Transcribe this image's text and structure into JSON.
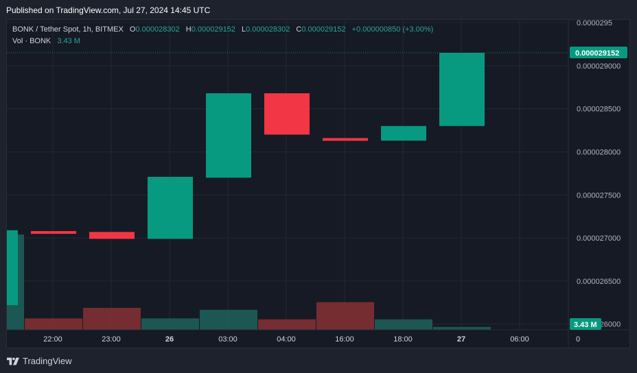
{
  "header": {
    "published": "Published on TradingView.com, Jul 27, 2024 14:45 UTC"
  },
  "legend": {
    "symbol": "BONK / Tether Spot, 1h, BITMEX",
    "o_label": "O",
    "o_value": "0.000028302",
    "h_label": "H",
    "h_value": "0.000029152",
    "l_label": "L",
    "l_value": "0.000028302",
    "c_label": "C",
    "c_value": "0.000029152",
    "change": "+0.000000850 (+3.00%)",
    "vol_label": "Vol · BONK",
    "vol_value": "3.43 M"
  },
  "price_badge": "0.000029152",
  "volume_badge": "3.43 M",
  "footer": {
    "brand": "TradingView"
  },
  "colors": {
    "up": "#089981",
    "down": "#f23645",
    "up_volume": "#1e5b55",
    "down_volume": "#7a2e33",
    "background": "#161a25",
    "grid": "#242833"
  },
  "chart_data": {
    "type": "candlestick",
    "ylim": [
      2.595e-05,
      2.9532e-05
    ],
    "y_ticks": [
      {
        "value": 2.95e-05,
        "label": "0.0000295"
      },
      {
        "value": 2.9e-05,
        "label": "0.000029000"
      },
      {
        "value": 2.85e-05,
        "label": "0.000028500"
      },
      {
        "value": 2.8e-05,
        "label": "0.000028000"
      },
      {
        "value": 2.75e-05,
        "label": "0.000027500"
      },
      {
        "value": 2.7e-05,
        "label": "0.000027000"
      },
      {
        "value": 2.65e-05,
        "label": "0.000026500"
      },
      {
        "value": 2.6e-05,
        "label": "0.000026000"
      }
    ],
    "x_ticks": [
      "22:00",
      "23:00",
      "26",
      "03:00",
      "04:00",
      "16:00",
      "18:00",
      "27",
      "06:00",
      "0"
    ],
    "x_ticks_bold": [
      "26",
      "27"
    ],
    "candles": [
      {
        "open": 2.709e-05,
        "close": 2.622e-05,
        "high": 2.709e-05,
        "low": 2.622e-05,
        "direction": "up",
        "volume": 1.0
      },
      {
        "open": 2.708e-05,
        "close": 2.707e-05,
        "high": 2.708e-05,
        "low": 2.707e-05,
        "direction": "down",
        "volume": 0.12
      },
      {
        "open": 2.707e-05,
        "close": 2.699e-05,
        "high": 2.707e-05,
        "low": 2.699e-05,
        "direction": "down",
        "volume": 0.23
      },
      {
        "open": 2.699e-05,
        "close": 2.771e-05,
        "high": 2.771e-05,
        "low": 2.699e-05,
        "direction": "up",
        "volume": 0.12
      },
      {
        "open": 2.77e-05,
        "close": 2.868e-05,
        "high": 2.868e-05,
        "low": 2.77e-05,
        "direction": "up",
        "volume": 0.21
      },
      {
        "open": 2.868e-05,
        "close": 2.82e-05,
        "high": 2.868e-05,
        "low": 2.82e-05,
        "direction": "down",
        "volume": 0.11
      },
      {
        "open": 2.816e-05,
        "close": 2.813e-05,
        "high": 2.816e-05,
        "low": 2.813e-05,
        "direction": "down",
        "volume": 0.29
      },
      {
        "open": 2.813e-05,
        "close": 2.83e-05,
        "high": 2.83e-05,
        "low": 2.813e-05,
        "direction": "up",
        "volume": 0.11
      },
      {
        "open": 2.83e-05,
        "close": 2.915e-05,
        "high": 2.915e-05,
        "low": 2.83e-05,
        "direction": "up",
        "volume": 0.03
      }
    ]
  }
}
